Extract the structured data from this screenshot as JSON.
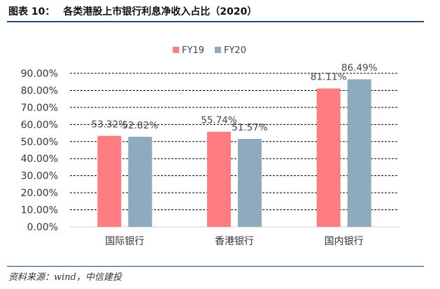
{
  "figure": {
    "label": "图表 10：",
    "title": "各类港股上市银行利息净收入占比（2020）",
    "source": "资料来源：wind，中信建投"
  },
  "colors": {
    "fy19": "#ff7c80",
    "fy20": "#8eaabe",
    "rule": "#1e4e79"
  },
  "chart_data": {
    "type": "bar",
    "title": "各类港股上市银行利息净收入占比（2020）",
    "categories": [
      "国际银行",
      "香港银行",
      "国内银行"
    ],
    "series": [
      {
        "name": "FY19",
        "values": [
          53.32,
          55.74,
          81.11
        ],
        "labels": [
          "53.32%",
          "55.74%",
          "81.11%"
        ]
      },
      {
        "name": "FY20",
        "values": [
          52.82,
          51.57,
          86.49
        ],
        "labels": [
          "52.82%",
          "51.57%",
          "86.49%"
        ]
      }
    ],
    "ylim": [
      0,
      90
    ],
    "yticks": [
      "0.00%",
      "10.00%",
      "20.00%",
      "30.00%",
      "40.00%",
      "50.00%",
      "60.00%",
      "70.00%",
      "80.00%",
      "90.00%"
    ],
    "ytick_values": [
      0,
      10,
      20,
      30,
      40,
      50,
      60,
      70,
      80,
      90
    ],
    "grid": true,
    "legend": "top-center",
    "xlabel": "",
    "ylabel": ""
  }
}
